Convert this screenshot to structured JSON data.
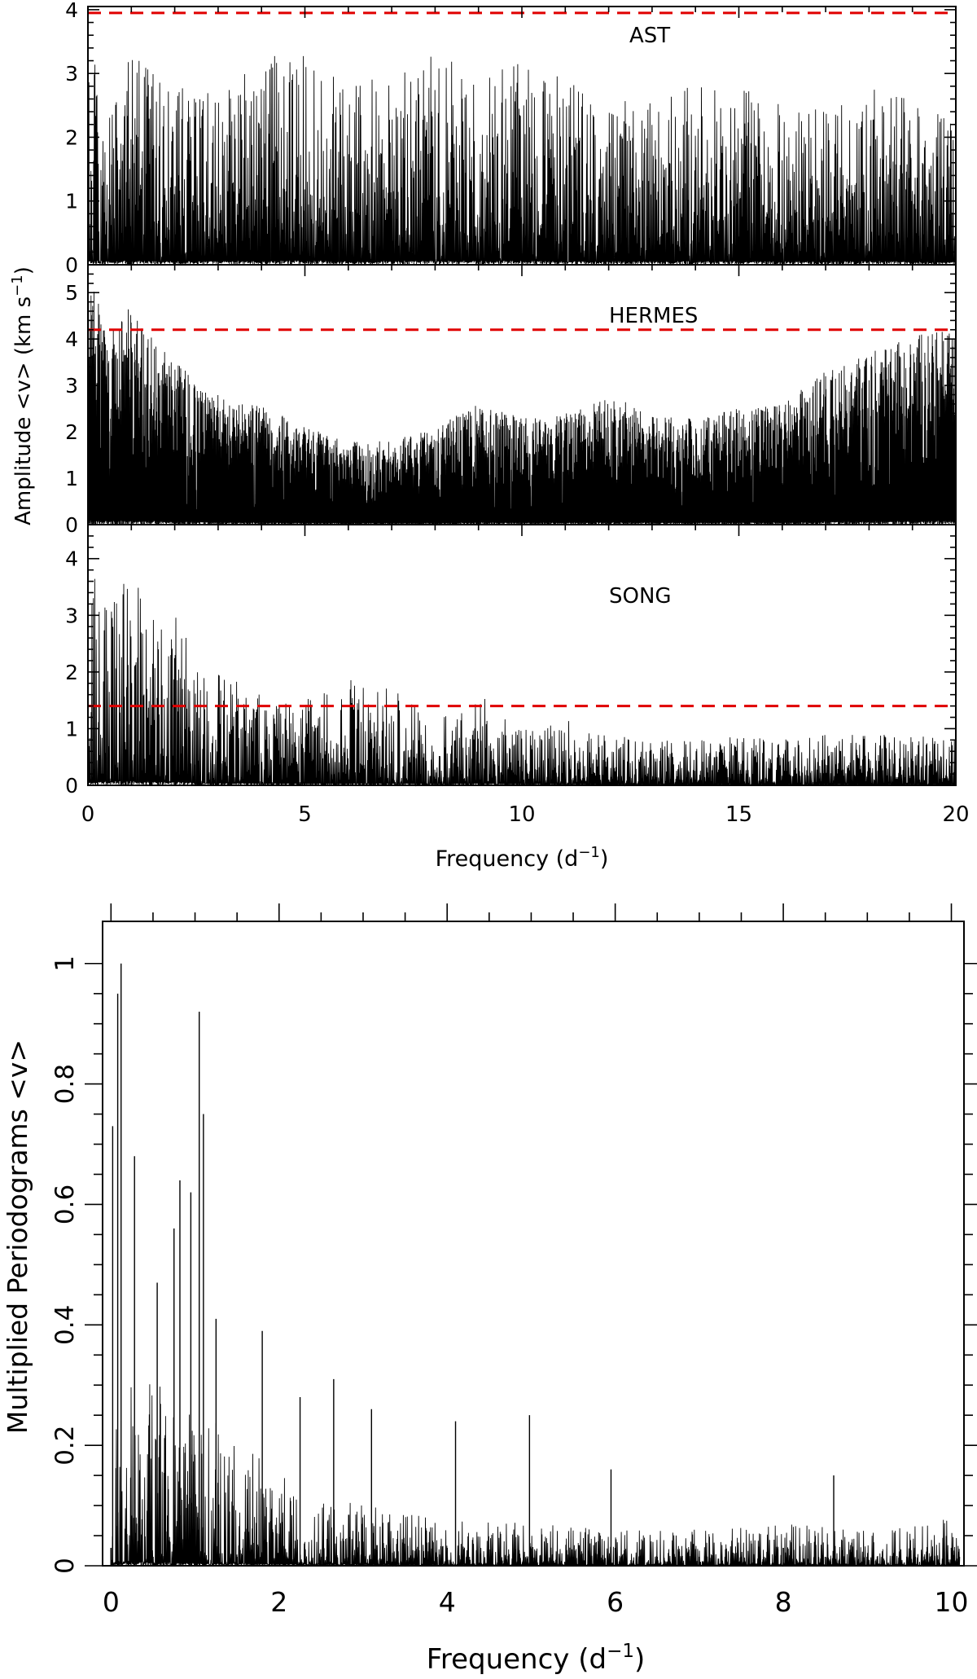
{
  "colors": {
    "threshold_line": "#e00000",
    "spectrum": "#000000"
  },
  "top_figure": {
    "ylabel_main": "Amplitude <v> (km s",
    "ylabel_sup": "−1",
    "ylabel_close": ")",
    "xlabel_main": "Frequency (d",
    "xlabel_sup": "−1",
    "xlabel_close": ")",
    "x_ticks": [
      "0",
      "5",
      "10",
      "15",
      "20"
    ]
  },
  "bottom_figure": {
    "ylabel": "Multiplied Periodograms <v>",
    "xlabel_main": "Frequency (d",
    "xlabel_sup": "−1",
    "xlabel_close": ")",
    "x_ticks": [
      "0",
      "2",
      "4",
      "6",
      "8",
      "10"
    ],
    "y_ticks": [
      "0",
      "0.2",
      "0.4",
      "0.6",
      "0.8",
      "1"
    ]
  },
  "chart_data": [
    {
      "type": "line",
      "panel": "AST",
      "title": "AST",
      "xlim": [
        0,
        20
      ],
      "ylim": [
        0,
        4.05
      ],
      "yticks": [
        "0",
        "1",
        "2",
        "3",
        "4"
      ],
      "threshold": 3.95,
      "envelope_x": [
        0,
        0.5,
        1,
        2,
        3,
        4,
        5,
        6,
        7,
        8,
        9,
        10,
        11,
        12,
        13,
        14,
        15,
        16,
        17,
        18,
        19,
        20
      ],
      "envelope_y": [
        3.6,
        2.6,
        3.3,
        2.8,
        2.7,
        3.35,
        3.3,
        2.8,
        3.0,
        3.3,
        3.0,
        3.2,
        2.9,
        2.5,
        2.7,
        2.8,
        2.8,
        2.6,
        2.4,
        2.9,
        2.6,
        2.2
      ]
    },
    {
      "type": "line",
      "panel": "HERMES",
      "title": "HERMES",
      "xlim": [
        0,
        20
      ],
      "ylim": [
        0,
        5.6
      ],
      "yticks": [
        "0",
        "1",
        "2",
        "3",
        "4",
        "5"
      ],
      "threshold": 4.2,
      "envelope_x": [
        0,
        0.5,
        1,
        2,
        3,
        4,
        5,
        6,
        7,
        8,
        9,
        10,
        11,
        12,
        13,
        14,
        15,
        16,
        17,
        18,
        19,
        20
      ],
      "envelope_y": [
        5.4,
        4.3,
        4.7,
        3.5,
        2.8,
        2.6,
        2.1,
        1.8,
        1.8,
        2.1,
        2.6,
        2.3,
        2.4,
        2.8,
        2.4,
        2.3,
        2.5,
        2.6,
        3.3,
        3.7,
        4.1,
        4.2
      ]
    },
    {
      "type": "line",
      "panel": "SONG",
      "title": "SONG",
      "xlim": [
        0,
        20
      ],
      "ylim": [
        0,
        4.6
      ],
      "yticks": [
        "0",
        "1",
        "2",
        "3",
        "4"
      ],
      "threshold": 1.4,
      "envelope_x": [
        0,
        0.5,
        0.9,
        1.5,
        2,
        2.5,
        3,
        4,
        5,
        6,
        7,
        8,
        9,
        10,
        11,
        12,
        13,
        14,
        15,
        16,
        17,
        18,
        19,
        20
      ],
      "envelope_y": [
        4.0,
        3.3,
        4.0,
        3.0,
        3.1,
        2.4,
        2.0,
        1.6,
        1.5,
        1.9,
        1.7,
        1.3,
        1.6,
        1.1,
        1.2,
        0.9,
        0.8,
        0.8,
        0.9,
        0.8,
        0.9,
        0.9,
        0.9,
        0.8
      ]
    },
    {
      "type": "line",
      "panel": "Multiplied",
      "xlim": [
        -0.1,
        10.15
      ],
      "ylim": [
        0,
        1.07
      ],
      "peaks": [
        {
          "x": 0.02,
          "y": 0.73
        },
        {
          "x": 0.08,
          "y": 0.95
        },
        {
          "x": 0.12,
          "y": 1.0
        },
        {
          "x": 0.28,
          "y": 0.68
        },
        {
          "x": 0.55,
          "y": 0.47
        },
        {
          "x": 0.75,
          "y": 0.56
        },
        {
          "x": 0.82,
          "y": 0.64
        },
        {
          "x": 0.95,
          "y": 0.62
        },
        {
          "x": 1.05,
          "y": 0.92
        },
        {
          "x": 1.1,
          "y": 0.75
        },
        {
          "x": 1.25,
          "y": 0.41
        },
        {
          "x": 1.8,
          "y": 0.39
        },
        {
          "x": 2.25,
          "y": 0.28
        },
        {
          "x": 2.65,
          "y": 0.31
        },
        {
          "x": 3.1,
          "y": 0.26
        },
        {
          "x": 4.1,
          "y": 0.24
        },
        {
          "x": 4.98,
          "y": 0.25
        },
        {
          "x": 5.95,
          "y": 0.16
        },
        {
          "x": 8.6,
          "y": 0.15
        }
      ],
      "envelope_x": [
        0,
        1.5,
        2,
        3,
        4,
        5,
        6,
        7,
        8,
        9,
        10.1
      ],
      "envelope_y": [
        0.35,
        0.22,
        0.15,
        0.1,
        0.08,
        0.07,
        0.06,
        0.06,
        0.07,
        0.06,
        0.08
      ]
    }
  ]
}
